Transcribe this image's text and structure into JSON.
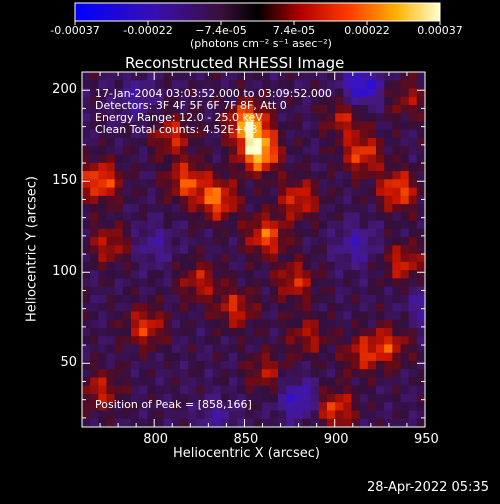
{
  "colorbar": {
    "tick_labels": [
      "-0.00037",
      "-0.00022",
      "−7.4e-05",
      "7.4e-05",
      "0.00022",
      "0.00037"
    ],
    "unit_label": "(photons cm⁻² s⁻¹ asec⁻²)",
    "range": [
      -0.00037,
      0.00037
    ]
  },
  "chart_data": {
    "type": "heatmap",
    "title": "Reconstructed RHESSI Image",
    "xlabel": "Heliocentric X (arcsec)",
    "ylabel": "Heliocentric Y (arcsec)",
    "xlim": [
      760,
      950
    ],
    "ylim": [
      15,
      210
    ],
    "xticks": [
      800,
      850,
      900,
      950
    ],
    "yticks": [
      50,
      100,
      150,
      200
    ],
    "colormap": "hot-blue diverging (blue-purple-red-orange-yellow-white)",
    "info_lines": [
      "17-Jan-2004 03:03:52.000 to 03:09:52.000",
      "Detectors: 3F 4F 5F 6F 7F 8F, Att 0",
      "Energy Range: 12.0 - 25.0 keV",
      "Clean     Total counts: 4.52E+03"
    ],
    "peak_label": "Position of Peak = [858,166]",
    "peak": [
      858,
      166
    ],
    "blobs": [
      {
        "x": 858,
        "y": 166,
        "v": 1.0
      },
      {
        "x": 852,
        "y": 182,
        "v": 0.9
      },
      {
        "x": 862,
        "y": 120,
        "v": 0.65
      },
      {
        "x": 835,
        "y": 140,
        "v": 0.7
      },
      {
        "x": 818,
        "y": 150,
        "v": 0.6
      },
      {
        "x": 770,
        "y": 150,
        "v": 0.7
      },
      {
        "x": 810,
        "y": 175,
        "v": 0.5
      },
      {
        "x": 880,
        "y": 140,
        "v": 0.55
      },
      {
        "x": 878,
        "y": 95,
        "v": 0.5
      },
      {
        "x": 845,
        "y": 80,
        "v": 0.5
      },
      {
        "x": 825,
        "y": 95,
        "v": 0.45
      },
      {
        "x": 935,
        "y": 145,
        "v": 0.65
      },
      {
        "x": 915,
        "y": 165,
        "v": 0.6
      },
      {
        "x": 938,
        "y": 105,
        "v": 0.5
      },
      {
        "x": 930,
        "y": 60,
        "v": 0.5
      },
      {
        "x": 915,
        "y": 55,
        "v": 0.45
      },
      {
        "x": 795,
        "y": 70,
        "v": 0.55
      },
      {
        "x": 775,
        "y": 115,
        "v": 0.45
      },
      {
        "x": 770,
        "y": 35,
        "v": 0.45
      },
      {
        "x": 905,
        "y": 185,
        "v": 0.45
      },
      {
        "x": 900,
        "y": 25,
        "v": 0.6
      },
      {
        "x": 885,
        "y": 65,
        "v": 0.4
      },
      {
        "x": 862,
        "y": 45,
        "v": 0.4
      },
      {
        "x": 940,
        "y": 195,
        "v": 0.35
      }
    ],
    "dips": [
      {
        "x": 915,
        "y": 202,
        "v": -0.7
      },
      {
        "x": 880,
        "y": 30,
        "v": -0.55
      },
      {
        "x": 912,
        "y": 115,
        "v": -0.4
      },
      {
        "x": 800,
        "y": 115,
        "v": -0.3
      },
      {
        "x": 790,
        "y": 195,
        "v": -0.35
      },
      {
        "x": 950,
        "y": 82,
        "v": -0.35
      },
      {
        "x": 835,
        "y": 20,
        "v": -0.3
      }
    ]
  },
  "footer": {
    "timestamp": "28-Apr-2022 05:35"
  }
}
